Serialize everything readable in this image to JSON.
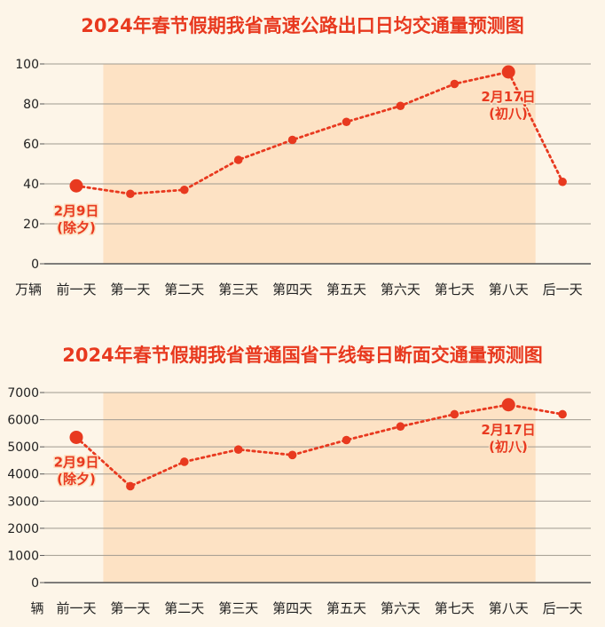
{
  "chart_data": [
    {
      "type": "line",
      "title": "2024年春节假期我省高速公路出口日均交通量预测图",
      "ylabel": "万辆",
      "categories": [
        "前一天",
        "第一天",
        "第二天",
        "第三天",
        "第四天",
        "第五天",
        "第六天",
        "第七天",
        "第八天",
        "后一天"
      ],
      "values": [
        39,
        35,
        37,
        52,
        62,
        71,
        79,
        90,
        96,
        41
      ],
      "ylim": [
        0,
        100
      ],
      "yticks": [
        "0",
        "20",
        "40",
        "60",
        "80",
        "100"
      ],
      "grid": true,
      "highlight_range": [
        "第一天",
        "第八天"
      ],
      "annotations": [
        {
          "category": "前一天",
          "lines": [
            "2月9日",
            "(除夕)"
          ],
          "position": "below"
        },
        {
          "category": "第八天",
          "lines": [
            "2月17日",
            "(初八)"
          ],
          "position": "below"
        }
      ]
    },
    {
      "type": "line",
      "title": "2024年春节假期我省普通国省干线每日断面交通量预测图",
      "ylabel": "辆",
      "categories": [
        "前一天",
        "第一天",
        "第二天",
        "第三天",
        "第四天",
        "第五天",
        "第六天",
        "第七天",
        "第八天",
        "后一天"
      ],
      "values": [
        5350,
        3550,
        4450,
        4900,
        4700,
        5250,
        5750,
        6200,
        6550,
        6200
      ],
      "ylim": [
        0,
        7000
      ],
      "yticks": [
        "0",
        "1000",
        "2000",
        "3000",
        "4000",
        "5000",
        "6000",
        "7000"
      ],
      "grid": true,
      "highlight_range": [
        "第一天",
        "第八天"
      ],
      "annotations": [
        {
          "category": "前一天",
          "lines": [
            "2月9日",
            "(除夕)"
          ],
          "position": "below"
        },
        {
          "category": "第八天",
          "lines": [
            "2月17日",
            "(初八)"
          ],
          "position": "below"
        }
      ]
    }
  ],
  "colors": {
    "accent": "#e8391f",
    "highlight_band": "#fde2c4",
    "background": "#fdf5e8",
    "grid": "#a09a90",
    "axis_text": "#222222"
  }
}
